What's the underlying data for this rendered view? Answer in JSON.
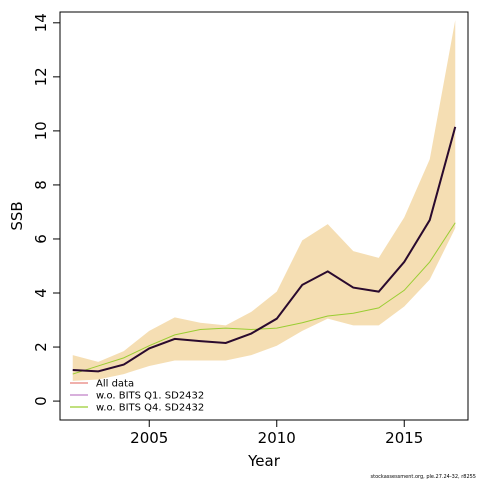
{
  "chart_data": {
    "type": "line",
    "title": "",
    "xlabel": "Year",
    "ylabel": "SSB",
    "xlim": [
      2001.5,
      2017.5
    ],
    "ylim": [
      -0.7,
      14.4
    ],
    "x_ticks": [
      2005,
      2010,
      2015
    ],
    "y_ticks": [
      0,
      2,
      4,
      6,
      8,
      10,
      12,
      14
    ],
    "x": [
      2002,
      2003,
      2004,
      2005,
      2006,
      2007,
      2008,
      2009,
      2010,
      2011,
      2012,
      2013,
      2014,
      2015,
      2016,
      2017
    ],
    "band": {
      "lower": [
        0.75,
        0.8,
        1.0,
        1.3,
        1.5,
        1.5,
        1.5,
        1.7,
        2.05,
        2.6,
        3.05,
        2.8,
        2.8,
        3.5,
        4.5,
        6.4
      ],
      "upper": [
        1.7,
        1.45,
        1.85,
        2.6,
        3.1,
        2.9,
        2.8,
        3.3,
        4.05,
        5.95,
        6.55,
        5.55,
        5.3,
        6.8,
        8.95,
        14.1
      ]
    },
    "series": [
      {
        "name": "All data",
        "values": [
          1.15,
          1.1,
          1.35,
          1.95,
          2.3,
          2.22,
          2.15,
          2.5,
          3.05,
          4.3,
          4.8,
          4.2,
          4.05,
          5.15,
          6.7,
          10.15
        ]
      },
      {
        "name": "w.o. BITS Q1. SD2432",
        "values": [
          1.15,
          1.1,
          1.35,
          1.95,
          2.3,
          2.22,
          2.15,
          2.5,
          3.05,
          4.3,
          4.8,
          4.2,
          4.05,
          5.15,
          6.7,
          10.15
        ]
      },
      {
        "name": "w.o. BITS Q4. SD2432",
        "values": [
          1.0,
          1.3,
          1.6,
          2.05,
          2.45,
          2.65,
          2.7,
          2.65,
          2.7,
          2.9,
          3.15,
          3.25,
          3.45,
          4.1,
          5.15,
          6.6
        ]
      }
    ],
    "legend": "bottom-left",
    "grid": false
  },
  "colors": {
    "band": "#f5deb3",
    "main_line": "#2a0a2e",
    "all_data": "#e8807a",
    "q1": "#c080c8",
    "q4": "#9acd32"
  },
  "credit": "stockassessment.org, ple.27.24-32, r8255"
}
